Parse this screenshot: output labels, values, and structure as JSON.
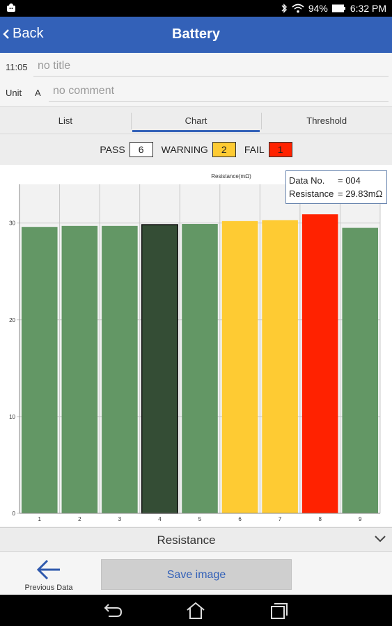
{
  "status_bar": {
    "battery_percent": "94%",
    "time": "6:32 PM",
    "icons": [
      "android-debug-icon",
      "bluetooth-icon",
      "wifi-icon",
      "battery-icon"
    ]
  },
  "app_bar": {
    "back_label": "Back",
    "title": "Battery"
  },
  "info": {
    "time_label": "11:05",
    "title_placeholder": "no title",
    "unit_label": "Unit",
    "unit_value": "A",
    "comment_placeholder": "no comment"
  },
  "tabs": [
    {
      "label": "List",
      "active": false
    },
    {
      "label": "Chart",
      "active": true
    },
    {
      "label": "Threshold",
      "active": false
    }
  ],
  "counts": {
    "pass_label": "PASS",
    "pass_value": "6",
    "warning_label": "WARNING",
    "warning_value": "2",
    "fail_label": "FAIL",
    "fail_value": "1",
    "colors": {
      "pass": "#ffffff",
      "warning": "#fecb33",
      "fail": "#ff2200"
    }
  },
  "chart_data": {
    "type": "bar",
    "title": "Resistance(mΩ)",
    "categories": [
      "1",
      "2",
      "3",
      "4",
      "5",
      "6",
      "7",
      "8",
      "9"
    ],
    "values": [
      29.6,
      29.7,
      29.7,
      29.83,
      29.9,
      30.2,
      30.3,
      30.9,
      29.5
    ],
    "status": [
      "pass",
      "pass",
      "pass",
      "pass",
      "pass",
      "warning",
      "warning",
      "fail",
      "pass"
    ],
    "selected_index": 3,
    "ylim": [
      0,
      34
    ],
    "yticks": [
      0,
      10,
      20,
      30
    ],
    "grid": true,
    "colors": {
      "pass": "#639765",
      "selected": "#344d35",
      "warning": "#fecb33",
      "fail": "#ff2200"
    }
  },
  "tooltip": {
    "data_no_label": "Data No.",
    "data_no_value": "= 004",
    "resistance_label": "Resistance",
    "resistance_value": "= 29.83mΩ"
  },
  "dropdown": {
    "selected": "Resistance"
  },
  "actions": {
    "previous_label": "Previous Data",
    "save_label": "Save image"
  },
  "nav_bar": {
    "icons": [
      "back-nav-icon",
      "home-nav-icon",
      "recents-nav-icon"
    ]
  }
}
